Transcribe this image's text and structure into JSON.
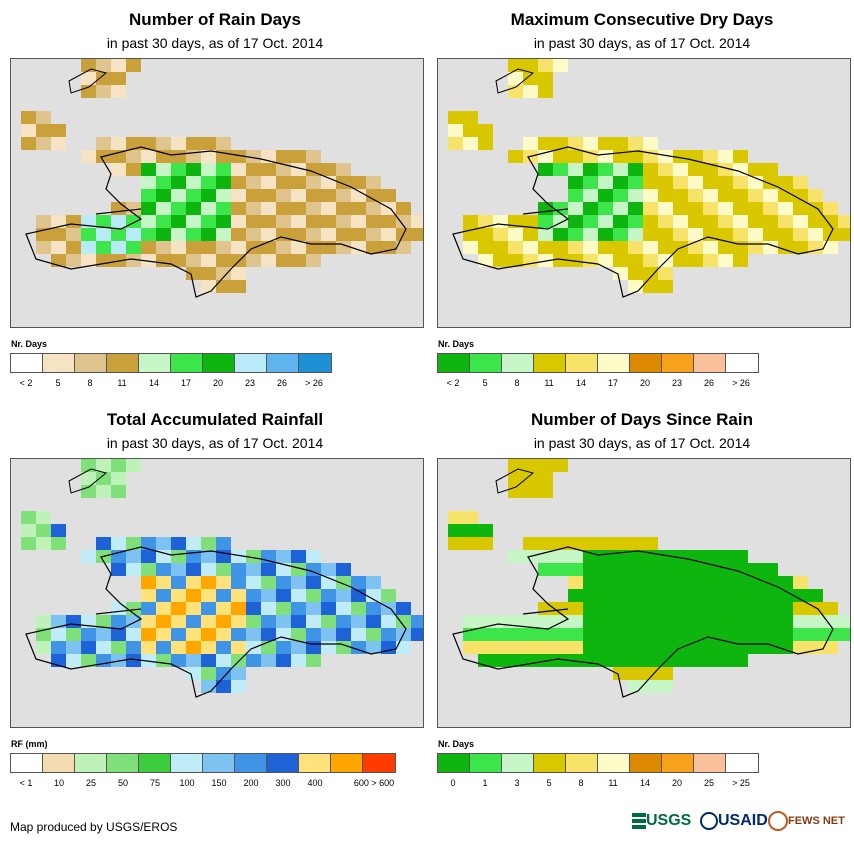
{
  "footer": {
    "credit": "Map produced by USGS/EROS",
    "logos": [
      "USGS",
      "USAID",
      "FEWS NET"
    ]
  },
  "panels": [
    {
      "id": "rain-days",
      "title": "Number of Rain Days",
      "subtitle": "in past 30 days, as of 17 Oct. 2014",
      "legend_title": "Nr. Days",
      "legend_colors": [
        "#ffffff",
        "#f5e3c4",
        "#e0c48e",
        "#c9a03a",
        "#c6f5c6",
        "#3ce64a",
        "#0fb50f",
        "#b9eaf7",
        "#60b4ee",
        "#1e90d6"
      ],
      "legend_labels": [
        "< 2",
        "5",
        "8",
        "11",
        "14",
        "17",
        "20",
        "23",
        "26",
        "> 26"
      ]
    },
    {
      "id": "dry-days",
      "title": "Maximum Consecutive Dry Days",
      "subtitle": "in past 30 days, as of 17 Oct. 2014",
      "legend_title": "Nr. Days",
      "legend_colors": [
        "#0fb50f",
        "#3ce64a",
        "#c6f5c6",
        "#d9c800",
        "#f7e36a",
        "#fffbc8",
        "#dd8a00",
        "#f7a21a",
        "#f8c19a",
        "#ffffff"
      ],
      "legend_labels": [
        "< 2",
        "5",
        "8",
        "11",
        "14",
        "17",
        "20",
        "23",
        "26",
        "> 26"
      ]
    },
    {
      "id": "rainfall",
      "title": "Total Accumulated Rainfall",
      "subtitle": "in past 30 days, as of 17 Oct. 2014",
      "legend_title": "RF (mm)",
      "legend_colors": [
        "#ffffff",
        "#f2dcb0",
        "#bff2b8",
        "#7fe07a",
        "#3ccc3c",
        "#c0ecf8",
        "#7ec2f2",
        "#3f94e6",
        "#1e62d8",
        "#ffe27a",
        "#ffa600",
        "#ff3c00"
      ],
      "legend_labels": [
        "< 1",
        "10",
        "25",
        "50",
        "75",
        "100",
        "150",
        "200",
        "300",
        "400",
        "600 > 600"
      ]
    },
    {
      "id": "since-rain",
      "title": "Number of Days Since Rain",
      "subtitle": "in past 30 days, as of 17 Oct. 2014",
      "legend_title": "Nr. Days",
      "legend_colors": [
        "#0fb50f",
        "#3ce64a",
        "#c6f5c6",
        "#d9c800",
        "#f7e36a",
        "#fffbc8",
        "#dd8a00",
        "#f7a21a",
        "#f8c19a",
        "#ffffff"
      ],
      "legend_labels": [
        "0",
        "1",
        "3",
        "5",
        "8",
        "11",
        "14",
        "20",
        "25",
        "> 25"
      ]
    }
  ]
}
